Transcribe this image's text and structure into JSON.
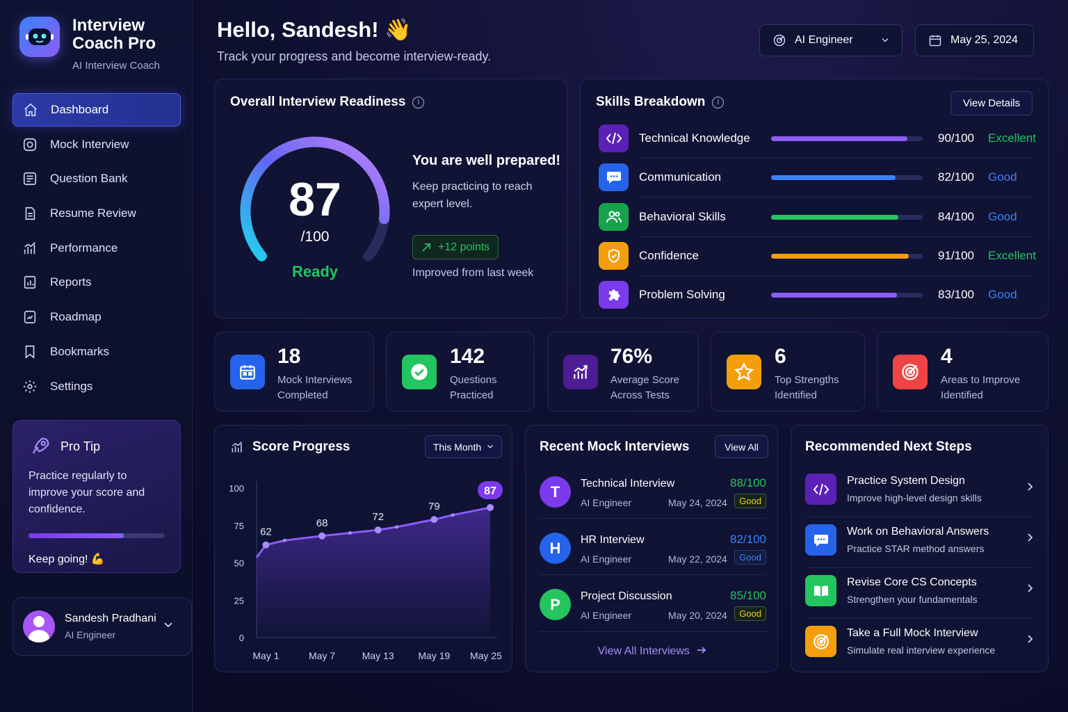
{
  "app": {
    "title": "Interview Coach Pro",
    "subtitle": "AI Interview Coach"
  },
  "sidebar": {
    "items": [
      {
        "label": "Dashboard",
        "icon": "home-icon"
      },
      {
        "label": "Mock Interview",
        "icon": "target-icon"
      },
      {
        "label": "Question Bank",
        "icon": "list-icon"
      },
      {
        "label": "Resume Review",
        "icon": "document-icon"
      },
      {
        "label": "Performance",
        "icon": "chart-icon"
      },
      {
        "label": "Reports",
        "icon": "report-icon"
      },
      {
        "label": "Roadmap",
        "icon": "map-icon"
      },
      {
        "label": "Bookmarks",
        "icon": "bookmark-icon"
      },
      {
        "label": "Settings",
        "icon": "gear-icon"
      }
    ],
    "tip": {
      "title": "Pro Tip",
      "body": "Practice regularly to improve your score and confidence.",
      "progress": 0.7,
      "footer": "Keep going! 💪"
    },
    "user": {
      "name": "Sandesh Pradhani",
      "role": "AI Engineer"
    }
  },
  "header": {
    "greeting": "Hello, Sandesh! 👋",
    "subtitle": "Track your progress and become interview-ready.",
    "role_select": "AI Engineer",
    "date": "May 25, 2024"
  },
  "readiness": {
    "title": "Overall Interview Readiness",
    "score": "87",
    "score_value": 87,
    "max": "/100",
    "status": "Ready",
    "headline": "You are well prepared!",
    "message": "Keep practicing to reach expert level.",
    "delta": "+12 points",
    "delta_note": "Improved from last week"
  },
  "skills": {
    "title": "Skills Breakdown",
    "view_details": "View Details",
    "items": [
      {
        "name": "Technical Knowledge",
        "score": "90/100",
        "value": 90,
        "level": "Excellent",
        "color": "#8b5cf6",
        "icon": "code-icon",
        "icon_bg": "#5b21b6"
      },
      {
        "name": "Communication",
        "score": "82/100",
        "value": 82,
        "level": "Good",
        "color": "#3b82f6",
        "icon": "chat-icon",
        "icon_bg": "#2563eb"
      },
      {
        "name": "Behavioral Skills",
        "score": "84/100",
        "value": 84,
        "level": "Good",
        "color": "#22c55e",
        "icon": "users-icon",
        "icon_bg": "#16a34a"
      },
      {
        "name": "Confidence",
        "score": "91/100",
        "value": 91,
        "level": "Excellent",
        "color": "#f59e0b",
        "icon": "shield-icon",
        "icon_bg": "#f59e0b"
      },
      {
        "name": "Problem Solving",
        "score": "83/100",
        "value": 83,
        "level": "Good",
        "color": "#8b5cf6",
        "icon": "puzzle-icon",
        "icon_bg": "#7c3aed"
      }
    ]
  },
  "stats": [
    {
      "value": "18",
      "label1": "Mock Interviews",
      "label2": "Completed",
      "icon": "calendar-icon",
      "bg": "#2563eb"
    },
    {
      "value": "142",
      "label1": "Questions",
      "label2": "Practiced",
      "icon": "check-icon",
      "bg": "#22c55e"
    },
    {
      "value": "76%",
      "label1": "Average Score",
      "label2": "Across Tests",
      "icon": "chart-icon",
      "bg": "#5b21b6"
    },
    {
      "value": "6",
      "label1": "Top Strengths",
      "label2": "Identified",
      "icon": "star-icon",
      "bg": "#f59e0b"
    },
    {
      "value": "4",
      "label1": "Areas to Improve",
      "label2": "Identified",
      "icon": "target-icon",
      "bg": "#ef4444"
    }
  ],
  "progress": {
    "title": "Score Progress",
    "range": "This Month",
    "chart_data": {
      "type": "area",
      "x_ticks": [
        "May 1",
        "May 7",
        "May 13",
        "May 19",
        "May 25"
      ],
      "y_ticks": [
        "0",
        "25",
        "50",
        "75",
        "100"
      ],
      "ylim": [
        0,
        100
      ],
      "x": [
        1,
        3,
        7,
        10,
        13,
        15,
        19,
        21,
        25
      ],
      "values": [
        62,
        65,
        68,
        70,
        72,
        74,
        79,
        82,
        87
      ],
      "labels": [
        {
          "text": "62",
          "x": 1,
          "y": 62
        },
        {
          "text": "68",
          "x": 7,
          "y": 68
        },
        {
          "text": "72",
          "x": 13,
          "y": 72
        },
        {
          "text": "79",
          "x": 19,
          "y": 79
        },
        {
          "text": "87",
          "x": 25,
          "y": 87
        }
      ]
    }
  },
  "recent": {
    "title": "Recent Mock Interviews",
    "view_all": "View All",
    "items": [
      {
        "initial": "T",
        "title": "Technical Interview",
        "role": "AI Engineer",
        "date": "May 24, 2024",
        "score": "88/100",
        "badge": "Good",
        "color": "#7c3aed"
      },
      {
        "initial": "H",
        "title": "HR Interview",
        "role": "AI Engineer",
        "date": "May 22, 2024",
        "score": "82/100",
        "badge": "Good",
        "color": "#2563eb"
      },
      {
        "initial": "P",
        "title": "Project Discussion",
        "role": "AI Engineer",
        "date": "May 20, 2024",
        "score": "85/100",
        "badge": "Good",
        "color": "#22c55e"
      }
    ],
    "footer_link": "View All Interviews"
  },
  "next_steps": {
    "title": "Recommended Next Steps",
    "items": [
      {
        "title": "Practice System Design",
        "sub": "Improve high-level design skills",
        "icon": "code-icon",
        "bg": "#5b21b6"
      },
      {
        "title": "Work on Behavioral Answers",
        "sub": "Practice STAR method answers",
        "icon": "chat-icon",
        "bg": "#2563eb"
      },
      {
        "title": "Revise Core CS Concepts",
        "sub": "Strengthen your fundamentals",
        "icon": "book-icon",
        "bg": "#22c55e"
      },
      {
        "title": "Take a Full Mock Interview",
        "sub": "Simulate real interview experience",
        "icon": "target-icon",
        "bg": "#f59e0b"
      }
    ]
  }
}
